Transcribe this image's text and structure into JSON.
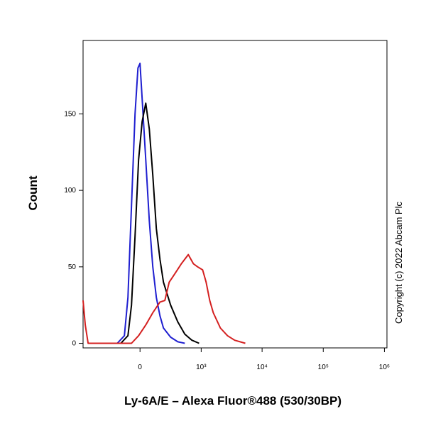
{
  "chart_data": {
    "type": "line",
    "x_label": "Ly-6A/E – Alexa Fluor®488 (530/30BP)",
    "y_label": "Count",
    "copyright": "Copyright (c) 2022 Abcam Plc",
    "x_scale": "biexponential",
    "xlim": [
      -850,
      1100000
    ],
    "ylim": [
      -3,
      198
    ],
    "xticks": [
      0,
      {
        "value": 1000,
        "label": "10³"
      },
      {
        "value": 10000,
        "label": "10⁴"
      },
      {
        "value": 100000,
        "label": "10⁵"
      },
      {
        "value": 1000000,
        "label": "10⁶"
      }
    ],
    "yticks": [
      0,
      50,
      100,
      150
    ],
    "series": [
      {
        "color": "#1f1fd0",
        "x": [
          -195,
          -126,
          -95,
          -66,
          -38,
          -16,
          0,
          16,
          44,
          72,
          101,
          132,
          166,
          202,
          288,
          394,
          526
        ],
        "values": [
          0,
          5,
          30,
          90,
          150,
          180,
          183,
          160,
          120,
          80,
          50,
          30,
          18,
          10,
          4,
          1,
          0
        ]
      },
      {
        "color": "#000000",
        "x": [
          -159,
          -95,
          -66,
          -38,
          -11,
          16,
          44,
          72,
          101,
          132,
          166,
          202,
          288,
          394,
          526,
          699,
          922
        ],
        "values": [
          0,
          5,
          25,
          70,
          120,
          145,
          157,
          140,
          110,
          75,
          55,
          40,
          25,
          14,
          6,
          2,
          0
        ]
      },
      {
        "color": "#d42020",
        "x": [
          -850,
          -781,
          -699,
          -66,
          -11,
          44,
          101,
          166,
          218,
          269,
          340,
          457,
          605,
          739,
          871,
          1056,
          1209,
          1385,
          1585,
          2077,
          2717,
          3555,
          5313
        ],
        "values": [
          28,
          12,
          0,
          0,
          5,
          12,
          20,
          27,
          28,
          40,
          45,
          52,
          58,
          52,
          50,
          48,
          40,
          28,
          20,
          10,
          5,
          2,
          0
        ]
      }
    ]
  }
}
